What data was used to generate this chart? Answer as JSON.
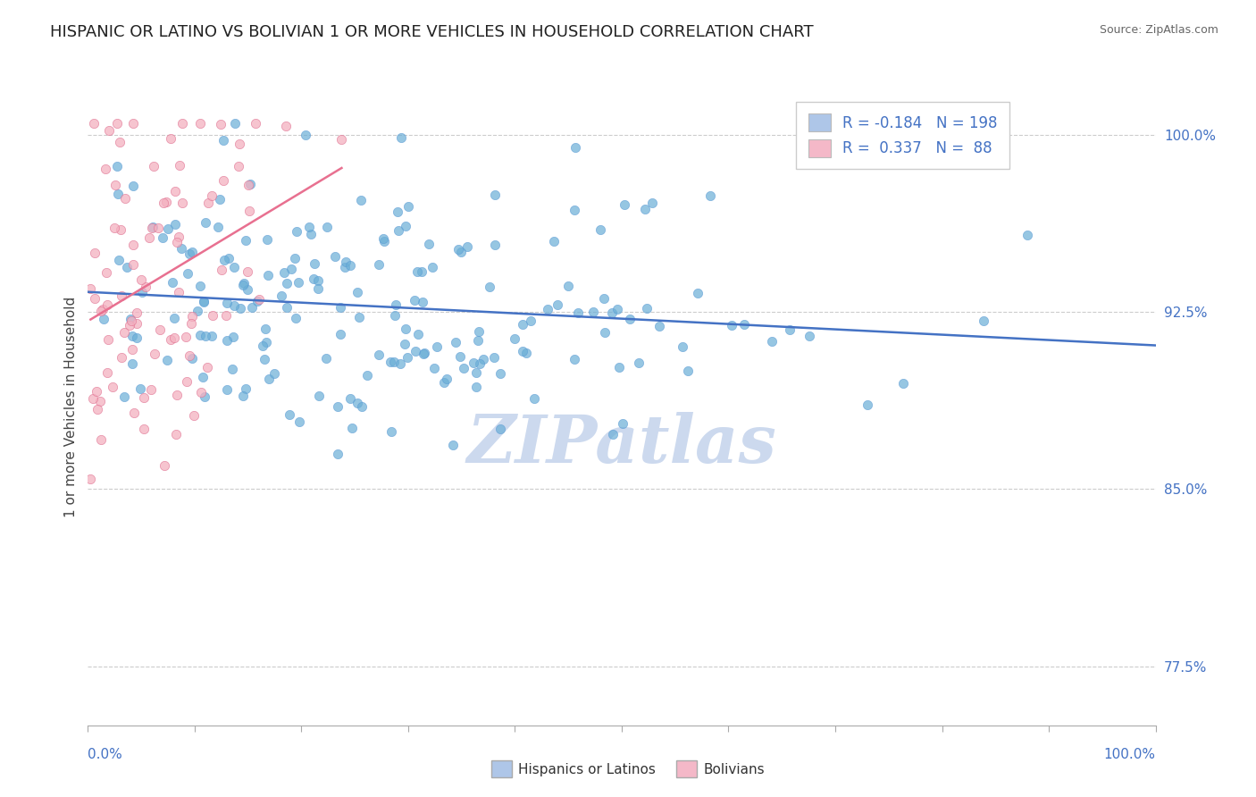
{
  "title": "HISPANIC OR LATINO VS BOLIVIAN 1 OR MORE VEHICLES IN HOUSEHOLD CORRELATION CHART",
  "source_text": "Source: ZipAtlas.com",
  "ylabel": "1 or more Vehicles in Household",
  "xlim": [
    0.0,
    100.0
  ],
  "ylim": [
    75.0,
    102.0
  ],
  "yticks": [
    77.5,
    85.0,
    92.5,
    100.0
  ],
  "ytick_labels": [
    "77.5%",
    "85.0%",
    "92.5%",
    "100.0%"
  ],
  "legend_entries": [
    {
      "label_r": "R = -0.184",
      "label_n": "N = 198",
      "color": "#aec6e8"
    },
    {
      "label_r": "R =  0.337",
      "label_n": "N =  88",
      "color": "#f4b8c8"
    }
  ],
  "watermark": "ZIPatlas",
  "watermark_color": "#ccd9ee",
  "R_blue": -0.184,
  "N_blue": 198,
  "R_pink": 0.337,
  "N_pink": 88,
  "blue_scatter_color": "#6aaed6",
  "blue_scatter_edge": "#5b9bd5",
  "pink_scatter_color": "#f4b0c0",
  "pink_scatter_edge": "#e07090",
  "blue_line_color": "#4472c4",
  "pink_line_color": "#e87090",
  "grid_color": "#cccccc",
  "background_color": "#ffffff",
  "title_color": "#222222",
  "axis_label_color": "#444444",
  "tick_label_color": "#4472c4",
  "source_color": "#666666"
}
